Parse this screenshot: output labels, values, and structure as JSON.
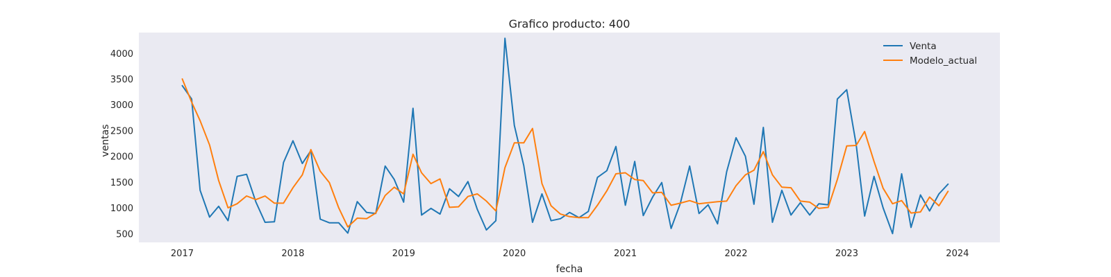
{
  "chart_data": {
    "type": "line",
    "title": "Grafico producto: 400",
    "xlabel": "fecha",
    "ylabel": "ventas",
    "xlim": [
      "2016-08-11",
      "2024-05-20"
    ],
    "ylim": [
      330,
      4400
    ],
    "x_ticks": [
      "2017-01-01",
      "2018-01-01",
      "2019-01-01",
      "2020-01-01",
      "2021-01-01",
      "2022-01-01",
      "2023-01-01",
      "2024-01-01"
    ],
    "x_tick_labels": [
      "2017",
      "2018",
      "2019",
      "2020",
      "2021",
      "2022",
      "2023",
      "2024"
    ],
    "y_ticks": [
      500,
      1000,
      1500,
      2000,
      2500,
      3000,
      3500,
      4000
    ],
    "y_tick_labels": [
      "500",
      "1000",
      "1500",
      "2000",
      "2500",
      "3000",
      "3500",
      "4000"
    ],
    "grid": false,
    "background": "#eaeaf2",
    "legend": "top-right",
    "x": [
      "2017-01-01",
      "2017-02-01",
      "2017-03-01",
      "2017-04-01",
      "2017-05-01",
      "2017-06-01",
      "2017-07-01",
      "2017-08-01",
      "2017-09-01",
      "2017-10-01",
      "2017-11-01",
      "2017-12-01",
      "2018-01-01",
      "2018-02-01",
      "2018-03-01",
      "2018-04-01",
      "2018-05-01",
      "2018-06-01",
      "2018-07-01",
      "2018-08-01",
      "2018-09-01",
      "2018-10-01",
      "2018-11-01",
      "2018-12-01",
      "2019-01-01",
      "2019-02-01",
      "2019-03-01",
      "2019-04-01",
      "2019-05-01",
      "2019-06-01",
      "2019-07-01",
      "2019-08-01",
      "2019-09-01",
      "2019-10-01",
      "2019-11-01",
      "2019-12-01",
      "2020-01-01",
      "2020-02-01",
      "2020-03-01",
      "2020-04-01",
      "2020-05-01",
      "2020-06-01",
      "2020-07-01",
      "2020-08-01",
      "2020-09-01",
      "2020-10-01",
      "2020-11-01",
      "2020-12-01",
      "2021-01-01",
      "2021-02-01",
      "2021-03-01",
      "2021-04-01",
      "2021-05-01",
      "2021-06-01",
      "2021-07-01",
      "2021-08-01",
      "2021-09-01",
      "2021-10-01",
      "2021-11-01",
      "2021-12-01",
      "2022-01-01",
      "2022-02-01",
      "2022-03-01",
      "2022-04-01",
      "2022-05-01",
      "2022-06-01",
      "2022-07-01",
      "2022-08-01",
      "2022-09-01",
      "2022-10-01",
      "2022-11-01",
      "2022-12-01",
      "2023-01-01",
      "2023-02-01",
      "2023-03-01",
      "2023-04-01",
      "2023-05-01",
      "2023-06-01",
      "2023-07-01",
      "2023-08-01",
      "2023-09-01",
      "2023-10-01",
      "2023-11-01",
      "2023-12-01"
    ],
    "series": [
      {
        "name": "Venta",
        "color": "#1f77b4",
        "values": [
          3370,
          3110,
          1340,
          820,
          1030,
          750,
          1610,
          1650,
          1110,
          720,
          730,
          1880,
          2300,
          1860,
          2110,
          780,
          710,
          710,
          510,
          1120,
          910,
          890,
          1810,
          1550,
          1110,
          2930,
          860,
          990,
          880,
          1370,
          1220,
          1510,
          970,
          570,
          750,
          4290,
          2600,
          1820,
          720,
          1270,
          750,
          790,
          910,
          810,
          930,
          1590,
          1720,
          2190,
          1050,
          1900,
          850,
          1210,
          1490,
          600,
          1080,
          1810,
          890,
          1060,
          690,
          1700,
          2360,
          2000,
          1070,
          2560,
          720,
          1340,
          860,
          1100,
          860,
          1080,
          1060,
          3110,
          3290,
          2230,
          840,
          1610,
          1000,
          500,
          1660,
          620,
          1250,
          940,
          1270,
          1460
        ]
      },
      {
        "name": "Modelo_actual",
        "color": "#ff7f0e",
        "values": [
          3500,
          3050,
          2690,
          2220,
          1530,
          1000,
          1080,
          1230,
          1160,
          1230,
          1090,
          1090,
          1390,
          1640,
          2130,
          1710,
          1490,
          1000,
          630,
          800,
          790,
          900,
          1240,
          1400,
          1270,
          2040,
          1680,
          1470,
          1560,
          1010,
          1020,
          1220,
          1270,
          1130,
          940,
          1780,
          2260,
          2260,
          2540,
          1470,
          1040,
          880,
          830,
          810,
          810,
          1050,
          1330,
          1660,
          1680,
          1550,
          1530,
          1290,
          1300,
          1050,
          1090,
          1140,
          1080,
          1100,
          1120,
          1130,
          1430,
          1640,
          1730,
          2090,
          1640,
          1400,
          1390,
          1130,
          1110,
          990,
          1010,
          1550,
          2200,
          2210,
          2480,
          1900,
          1380,
          1080,
          1140,
          900,
          920,
          1210,
          1040,
          1320
        ]
      }
    ]
  }
}
